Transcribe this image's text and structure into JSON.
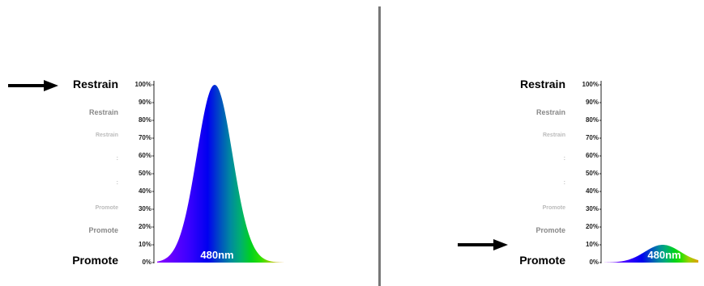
{
  "panels": [
    {
      "scale_labels": [
        {
          "text": "Restrain",
          "size": "large"
        },
        {
          "text": "Restrain",
          "size": "medium"
        },
        {
          "text": "Restrain",
          "size": "small"
        },
        {
          "text": ":",
          "size": "dots"
        },
        {
          "text": ":",
          "size": "dots"
        },
        {
          "text": "Promote",
          "size": "small"
        },
        {
          "text": "Promote",
          "size": "medium"
        },
        {
          "text": "Promote",
          "size": "large"
        }
      ],
      "pointer_level": "Restrain",
      "wavelength_label": "480nm",
      "peak_percent": 100
    },
    {
      "scale_labels": [
        {
          "text": "Restrain",
          "size": "large"
        },
        {
          "text": "Restrain",
          "size": "medium"
        },
        {
          "text": "Restrain",
          "size": "small"
        },
        {
          "text": ":",
          "size": "dots"
        },
        {
          "text": ":",
          "size": "dots"
        },
        {
          "text": "Promote",
          "size": "small"
        },
        {
          "text": "Promote",
          "size": "medium"
        },
        {
          "text": "Promote",
          "size": "large"
        }
      ],
      "pointer_level": "Promote",
      "wavelength_label": "480nm",
      "peak_percent": 10
    }
  ],
  "axis_ticks": [
    "100%",
    "90%",
    "80%",
    "70%",
    "60%",
    "50%",
    "40%",
    "30%",
    "20%",
    "10%",
    "0%"
  ],
  "colors": {
    "spectrum": [
      "#8a00ff",
      "#3b00ff",
      "#0000f0",
      "#0050c0",
      "#008aa0",
      "#00b070",
      "#00d020",
      "#30e000",
      "#a0d000",
      "#e0a000"
    ],
    "divider": "#777777",
    "arrow": "#000000"
  }
}
